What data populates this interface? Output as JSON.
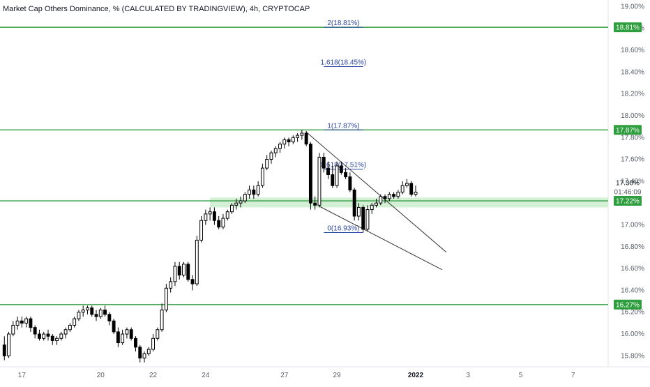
{
  "chart_data": {
    "type": "candlestick",
    "title": "Market Cap Others Dominance, % (CALCULATED BY TRADINGVIEW), 4h, CRYPTOCAP",
    "ylim": [
      15.7,
      19.06
    ],
    "y_scale": "linear",
    "y_unit": "%",
    "y_ticks": [
      "19.00%",
      "18.80%",
      "18.60%",
      "18.40%",
      "18.20%",
      "18.00%",
      "17.80%",
      "17.60%",
      "17.40%",
      "17.00%",
      "16.80%",
      "16.60%",
      "16.40%",
      "16.20%",
      "16.00%",
      "15.80%"
    ],
    "x_ticks": [
      {
        "label": "17",
        "date": "2021-12-17",
        "bold": false
      },
      {
        "label": "20",
        "date": "2021-12-20",
        "bold": false
      },
      {
        "label": "22",
        "date": "2021-12-22",
        "bold": false
      },
      {
        "label": "24",
        "date": "2021-12-24",
        "bold": false
      },
      {
        "label": "27",
        "date": "2021-12-27",
        "bold": false
      },
      {
        "label": "29",
        "date": "2021-12-29",
        "bold": false
      },
      {
        "label": "2022",
        "date": "2022-01-01",
        "bold": true
      },
      {
        "label": "3",
        "date": "2022-01-03",
        "bold": false
      },
      {
        "label": "5",
        "date": "2022-01-05",
        "bold": false
      },
      {
        "label": "7",
        "date": "2022-01-07",
        "bold": false
      }
    ],
    "x_range": [
      "2021-12-16T04:00",
      "2022-01-08T08:00"
    ],
    "horizontal_levels": [
      {
        "value": 18.81,
        "label": "18.81%",
        "color": "#2e9e3e"
      },
      {
        "value": 17.87,
        "label": "17.87%",
        "color": "#2e9e3e"
      },
      {
        "value": 17.22,
        "label": "17.22%",
        "color": "#2e9e3e"
      },
      {
        "value": 16.27,
        "label": "16.27%",
        "color": "#2e9e3e"
      }
    ],
    "current_price": {
      "value": 17.3,
      "label": "17.30%",
      "countdown": "01:46:09"
    },
    "support_zone": {
      "from": 17.16,
      "to": 17.25,
      "color": "#d4f0d4"
    },
    "fibonacci": {
      "color": "#2a44a0",
      "levels": [
        {
          "ratio": "2",
          "value": 18.81,
          "label": "2(18.81%)",
          "start": "2021-12-28T12:00",
          "end": "2021-12-30T00:00"
        },
        {
          "ratio": "1.618",
          "value": 18.45,
          "label": "1.618(18.45%)",
          "start": "2021-12-28T12:00",
          "end": "2021-12-30T00:00"
        },
        {
          "ratio": "1",
          "value": 17.87,
          "label": "1(17.87%)",
          "start": "2021-12-28T12:00",
          "end": "2021-12-30T00:00"
        },
        {
          "ratio": "0.618",
          "value": 17.51,
          "label": "0.618(17.51%)",
          "start": "2021-12-28T12:00",
          "end": "2021-12-30T00:00"
        },
        {
          "ratio": "0",
          "value": 16.93,
          "label": "0(16.93%)",
          "start": "2021-12-28T12:00",
          "end": "2021-12-30T00:00"
        }
      ]
    },
    "trendlines": [
      {
        "name": "upper",
        "from": {
          "date": "2021-12-27T20:00",
          "value": 17.85
        },
        "to": {
          "date": "2022-01-02T04:00",
          "value": 16.75
        },
        "color": "#333333"
      },
      {
        "name": "lower",
        "from": {
          "date": "2021-12-28T08:00",
          "value": 17.17
        },
        "to": {
          "date": "2022-01-02T00:00",
          "value": 16.59
        },
        "color": "#333333"
      }
    ],
    "candles": [
      {
        "t": "2021-12-16T08:00",
        "o": 15.9,
        "h": 15.98,
        "l": 15.76,
        "c": 15.8
      },
      {
        "t": "2021-12-16T12:00",
        "o": 15.8,
        "h": 16.02,
        "l": 15.78,
        "c": 16.0
      },
      {
        "t": "2021-12-16T16:00",
        "o": 16.0,
        "h": 16.12,
        "l": 15.98,
        "c": 16.08
      },
      {
        "t": "2021-12-16T20:00",
        "o": 16.08,
        "h": 16.16,
        "l": 16.04,
        "c": 16.12
      },
      {
        "t": "2021-12-17T00:00",
        "o": 16.12,
        "h": 16.16,
        "l": 16.06,
        "c": 16.1
      },
      {
        "t": "2021-12-17T04:00",
        "o": 16.1,
        "h": 16.16,
        "l": 16.06,
        "c": 16.14
      },
      {
        "t": "2021-12-17T08:00",
        "o": 16.14,
        "h": 16.16,
        "l": 16.02,
        "c": 16.06
      },
      {
        "t": "2021-12-17T12:00",
        "o": 16.06,
        "h": 16.08,
        "l": 15.96,
        "c": 16.0
      },
      {
        "t": "2021-12-17T16:00",
        "o": 16.0,
        "h": 16.04,
        "l": 15.94,
        "c": 15.96
      },
      {
        "t": "2021-12-17T20:00",
        "o": 15.96,
        "h": 16.02,
        "l": 15.94,
        "c": 16.0
      },
      {
        "t": "2021-12-18T00:00",
        "o": 16.0,
        "h": 16.04,
        "l": 15.94,
        "c": 15.98
      },
      {
        "t": "2021-12-18T04:00",
        "o": 15.98,
        "h": 16.0,
        "l": 15.9,
        "c": 15.94
      },
      {
        "t": "2021-12-18T08:00",
        "o": 15.94,
        "h": 15.98,
        "l": 15.9,
        "c": 15.96
      },
      {
        "t": "2021-12-18T12:00",
        "o": 15.96,
        "h": 16.02,
        "l": 15.94,
        "c": 16.0
      },
      {
        "t": "2021-12-18T16:00",
        "o": 16.0,
        "h": 16.06,
        "l": 15.96,
        "c": 16.04
      },
      {
        "t": "2021-12-18T20:00",
        "o": 16.04,
        "h": 16.1,
        "l": 16.02,
        "c": 16.08
      },
      {
        "t": "2021-12-19T00:00",
        "o": 16.08,
        "h": 16.16,
        "l": 16.06,
        "c": 16.14
      },
      {
        "t": "2021-12-19T04:00",
        "o": 16.14,
        "h": 16.22,
        "l": 16.12,
        "c": 16.2
      },
      {
        "t": "2021-12-19T08:00",
        "o": 16.2,
        "h": 16.26,
        "l": 16.16,
        "c": 16.22
      },
      {
        "t": "2021-12-19T12:00",
        "o": 16.22,
        "h": 16.26,
        "l": 16.18,
        "c": 16.24
      },
      {
        "t": "2021-12-19T16:00",
        "o": 16.24,
        "h": 16.26,
        "l": 16.16,
        "c": 16.18
      },
      {
        "t": "2021-12-19T20:00",
        "o": 16.18,
        "h": 16.22,
        "l": 16.12,
        "c": 16.16
      },
      {
        "t": "2021-12-20T00:00",
        "o": 16.16,
        "h": 16.24,
        "l": 16.14,
        "c": 16.22
      },
      {
        "t": "2021-12-20T04:00",
        "o": 16.22,
        "h": 16.26,
        "l": 16.16,
        "c": 16.18
      },
      {
        "t": "2021-12-20T08:00",
        "o": 16.18,
        "h": 16.2,
        "l": 16.08,
        "c": 16.12
      },
      {
        "t": "2021-12-20T12:00",
        "o": 16.12,
        "h": 16.14,
        "l": 16.0,
        "c": 16.02
      },
      {
        "t": "2021-12-20T16:00",
        "o": 16.02,
        "h": 16.06,
        "l": 15.88,
        "c": 15.92
      },
      {
        "t": "2021-12-20T20:00",
        "o": 15.92,
        "h": 16.04,
        "l": 15.9,
        "c": 16.0
      },
      {
        "t": "2021-12-21T00:00",
        "o": 16.0,
        "h": 16.06,
        "l": 15.96,
        "c": 16.04
      },
      {
        "t": "2021-12-21T04:00",
        "o": 16.04,
        "h": 16.06,
        "l": 15.94,
        "c": 15.96
      },
      {
        "t": "2021-12-21T08:00",
        "o": 15.96,
        "h": 15.98,
        "l": 15.84,
        "c": 15.88
      },
      {
        "t": "2021-12-21T12:00",
        "o": 15.88,
        "h": 15.9,
        "l": 15.74,
        "c": 15.78
      },
      {
        "t": "2021-12-21T16:00",
        "o": 15.78,
        "h": 15.84,
        "l": 15.74,
        "c": 15.82
      },
      {
        "t": "2021-12-21T20:00",
        "o": 15.82,
        "h": 15.88,
        "l": 15.8,
        "c": 15.86
      },
      {
        "t": "2021-12-22T00:00",
        "o": 15.86,
        "h": 16.0,
        "l": 15.84,
        "c": 15.96
      },
      {
        "t": "2021-12-22T04:00",
        "o": 15.96,
        "h": 16.06,
        "l": 15.94,
        "c": 16.04
      },
      {
        "t": "2021-12-22T08:00",
        "o": 16.04,
        "h": 16.28,
        "l": 16.02,
        "c": 16.22
      },
      {
        "t": "2021-12-22T12:00",
        "o": 16.22,
        "h": 16.46,
        "l": 16.2,
        "c": 16.42
      },
      {
        "t": "2021-12-22T16:00",
        "o": 16.42,
        "h": 16.52,
        "l": 16.38,
        "c": 16.48
      },
      {
        "t": "2021-12-22T20:00",
        "o": 16.48,
        "h": 16.66,
        "l": 16.44,
        "c": 16.62
      },
      {
        "t": "2021-12-23T00:00",
        "o": 16.62,
        "h": 16.66,
        "l": 16.5,
        "c": 16.54
      },
      {
        "t": "2021-12-23T04:00",
        "o": 16.54,
        "h": 16.66,
        "l": 16.52,
        "c": 16.64
      },
      {
        "t": "2021-12-23T08:00",
        "o": 16.64,
        "h": 16.66,
        "l": 16.48,
        "c": 16.5
      },
      {
        "t": "2021-12-23T12:00",
        "o": 16.5,
        "h": 16.54,
        "l": 16.4,
        "c": 16.46
      },
      {
        "t": "2021-12-23T16:00",
        "o": 16.46,
        "h": 16.9,
        "l": 16.44,
        "c": 16.86
      },
      {
        "t": "2021-12-23T20:00",
        "o": 16.86,
        "h": 17.08,
        "l": 16.84,
        "c": 17.04
      },
      {
        "t": "2021-12-24T00:00",
        "o": 17.04,
        "h": 17.14,
        "l": 17.0,
        "c": 17.1
      },
      {
        "t": "2021-12-24T04:00",
        "o": 17.1,
        "h": 17.16,
        "l": 17.04,
        "c": 17.12
      },
      {
        "t": "2021-12-24T08:00",
        "o": 17.12,
        "h": 17.16,
        "l": 17.0,
        "c": 17.04
      },
      {
        "t": "2021-12-24T12:00",
        "o": 17.04,
        "h": 17.08,
        "l": 16.96,
        "c": 16.98
      },
      {
        "t": "2021-12-24T16:00",
        "o": 16.98,
        "h": 17.1,
        "l": 16.96,
        "c": 17.06
      },
      {
        "t": "2021-12-24T20:00",
        "o": 17.06,
        "h": 17.14,
        "l": 17.04,
        "c": 17.12
      },
      {
        "t": "2021-12-25T00:00",
        "o": 17.12,
        "h": 17.2,
        "l": 17.1,
        "c": 17.18
      },
      {
        "t": "2021-12-25T04:00",
        "o": 17.18,
        "h": 17.24,
        "l": 17.14,
        "c": 17.2
      },
      {
        "t": "2021-12-25T08:00",
        "o": 17.2,
        "h": 17.26,
        "l": 17.16,
        "c": 17.22
      },
      {
        "t": "2021-12-25T12:00",
        "o": 17.22,
        "h": 17.3,
        "l": 17.2,
        "c": 17.28
      },
      {
        "t": "2021-12-25T16:00",
        "o": 17.28,
        "h": 17.36,
        "l": 17.24,
        "c": 17.32
      },
      {
        "t": "2021-12-25T20:00",
        "o": 17.32,
        "h": 17.36,
        "l": 17.24,
        "c": 17.28
      },
      {
        "t": "2021-12-26T00:00",
        "o": 17.28,
        "h": 17.4,
        "l": 17.26,
        "c": 17.36
      },
      {
        "t": "2021-12-26T04:00",
        "o": 17.36,
        "h": 17.56,
        "l": 17.34,
        "c": 17.52
      },
      {
        "t": "2021-12-26T08:00",
        "o": 17.52,
        "h": 17.64,
        "l": 17.5,
        "c": 17.6
      },
      {
        "t": "2021-12-26T12:00",
        "o": 17.6,
        "h": 17.68,
        "l": 17.56,
        "c": 17.66
      },
      {
        "t": "2021-12-26T16:00",
        "o": 17.66,
        "h": 17.72,
        "l": 17.62,
        "c": 17.7
      },
      {
        "t": "2021-12-26T20:00",
        "o": 17.7,
        "h": 17.76,
        "l": 17.66,
        "c": 17.74
      },
      {
        "t": "2021-12-27T00:00",
        "o": 17.74,
        "h": 17.8,
        "l": 17.7,
        "c": 17.78
      },
      {
        "t": "2021-12-27T04:00",
        "o": 17.78,
        "h": 17.8,
        "l": 17.72,
        "c": 17.76
      },
      {
        "t": "2021-12-27T08:00",
        "o": 17.76,
        "h": 17.82,
        "l": 17.74,
        "c": 17.8
      },
      {
        "t": "2021-12-27T12:00",
        "o": 17.8,
        "h": 17.84,
        "l": 17.76,
        "c": 17.82
      },
      {
        "t": "2021-12-27T16:00",
        "o": 17.82,
        "h": 17.87,
        "l": 17.78,
        "c": 17.84
      },
      {
        "t": "2021-12-27T20:00",
        "o": 17.84,
        "h": 17.86,
        "l": 17.72,
        "c": 17.74
      },
      {
        "t": "2021-12-28T00:00",
        "o": 17.74,
        "h": 17.76,
        "l": 17.14,
        "c": 17.2
      },
      {
        "t": "2021-12-28T04:00",
        "o": 17.2,
        "h": 17.26,
        "l": 17.14,
        "c": 17.18
      },
      {
        "t": "2021-12-28T08:00",
        "o": 17.18,
        "h": 17.66,
        "l": 17.16,
        "c": 17.62
      },
      {
        "t": "2021-12-28T12:00",
        "o": 17.62,
        "h": 17.66,
        "l": 17.48,
        "c": 17.52
      },
      {
        "t": "2021-12-28T16:00",
        "o": 17.52,
        "h": 17.58,
        "l": 17.42,
        "c": 17.46
      },
      {
        "t": "2021-12-28T20:00",
        "o": 17.46,
        "h": 17.54,
        "l": 17.34,
        "c": 17.36
      },
      {
        "t": "2021-12-29T00:00",
        "o": 17.36,
        "h": 17.58,
        "l": 17.34,
        "c": 17.54
      },
      {
        "t": "2021-12-29T04:00",
        "o": 17.54,
        "h": 17.58,
        "l": 17.46,
        "c": 17.48
      },
      {
        "t": "2021-12-29T08:00",
        "o": 17.48,
        "h": 17.52,
        "l": 17.42,
        "c": 17.44
      },
      {
        "t": "2021-12-29T12:00",
        "o": 17.44,
        "h": 17.48,
        "l": 17.3,
        "c": 17.32
      },
      {
        "t": "2021-12-29T16:00",
        "o": 17.32,
        "h": 17.34,
        "l": 17.04,
        "c": 17.08
      },
      {
        "t": "2021-12-29T20:00",
        "o": 17.08,
        "h": 17.2,
        "l": 17.04,
        "c": 17.16
      },
      {
        "t": "2021-12-30T00:00",
        "o": 17.16,
        "h": 17.18,
        "l": 16.93,
        "c": 16.96
      },
      {
        "t": "2021-12-30T04:00",
        "o": 16.96,
        "h": 17.18,
        "l": 16.94,
        "c": 17.14
      },
      {
        "t": "2021-12-30T08:00",
        "o": 17.14,
        "h": 17.2,
        "l": 17.1,
        "c": 17.18
      },
      {
        "t": "2021-12-30T12:00",
        "o": 17.18,
        "h": 17.24,
        "l": 17.16,
        "c": 17.2
      },
      {
        "t": "2021-12-30T16:00",
        "o": 17.2,
        "h": 17.28,
        "l": 17.18,
        "c": 17.26
      },
      {
        "t": "2021-12-30T20:00",
        "o": 17.26,
        "h": 17.28,
        "l": 17.2,
        "c": 17.24
      },
      {
        "t": "2021-12-31T00:00",
        "o": 17.24,
        "h": 17.3,
        "l": 17.22,
        "c": 17.28
      },
      {
        "t": "2021-12-31T04:00",
        "o": 17.28,
        "h": 17.3,
        "l": 17.24,
        "c": 17.26
      },
      {
        "t": "2021-12-31T08:00",
        "o": 17.26,
        "h": 17.32,
        "l": 17.24,
        "c": 17.3
      },
      {
        "t": "2021-12-31T12:00",
        "o": 17.3,
        "h": 17.4,
        "l": 17.28,
        "c": 17.36
      },
      {
        "t": "2021-12-31T16:00",
        "o": 17.36,
        "h": 17.42,
        "l": 17.34,
        "c": 17.38
      },
      {
        "t": "2021-12-31T20:00",
        "o": 17.38,
        "h": 17.4,
        "l": 17.26,
        "c": 17.28
      },
      {
        "t": "2022-01-01T00:00",
        "o": 17.28,
        "h": 17.36,
        "l": 17.26,
        "c": 17.3
      }
    ]
  }
}
